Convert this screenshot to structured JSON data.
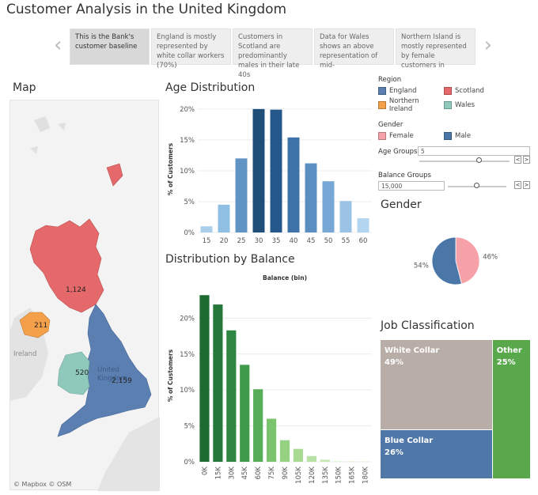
{
  "title": "Customer Analysis in the United Kingdom",
  "story": {
    "points": [
      "This is the Bank's customer baseline",
      "England is mostly represented by white collar workers (70%)",
      "Customers in Scotland are predominantly males in their late 40s",
      "Data for Wales shows an above representation of mid-",
      "Northern Island is mostly represented by female customers in"
    ],
    "active_index": 0
  },
  "map": {
    "title": "Map",
    "labels": {
      "scotland": "1,124",
      "northern_ireland": "211",
      "wales": "520",
      "england": "2,159",
      "united_kingdom": "United Kingdom",
      "ireland": "Ireland"
    },
    "credit": "© Mapbox  © OSM",
    "colors": {
      "england": "#5b7fb0",
      "scotland": "#e5696b",
      "northern_ireland": "#f4a04a",
      "wales": "#8fc9bc"
    }
  },
  "age_chart": {
    "title": "Age Distribution",
    "chart_data": {
      "type": "bar",
      "title": "Age Distribution",
      "xlabel": "",
      "ylabel": "% of Customers",
      "categories": [
        "15",
        "20",
        "25",
        "30",
        "35",
        "40",
        "45",
        "50",
        "55",
        "60"
      ],
      "values": [
        1.0,
        4.5,
        12.0,
        20.0,
        19.9,
        15.4,
        11.2,
        8.3,
        5.1,
        2.3
      ],
      "y_ticks": [
        "0%",
        "5%",
        "10%",
        "15%",
        "20%"
      ],
      "ylim": [
        0,
        20.5
      ],
      "colors": [
        "#a9cfeb",
        "#8fbfe3",
        "#5f94c4",
        "#1f4e79",
        "#24578a",
        "#3d73a8",
        "#5b8fc2",
        "#77a8d5",
        "#9ac3e6",
        "#b4d5ef"
      ]
    }
  },
  "balance_chart": {
    "title": "Distribution by Balance",
    "chart_data": {
      "type": "bar",
      "title": "Distribution by Balance",
      "xlabel": "Balance (bin)",
      "ylabel": "% of Customers",
      "categories": [
        "0K",
        "15K",
        "30K",
        "45K",
        "60K",
        "75K",
        "90K",
        "105K",
        "120K",
        "135K",
        "150K",
        "165K",
        "180K"
      ],
      "values": [
        23.2,
        21.9,
        18.3,
        13.5,
        10.1,
        6.0,
        3.0,
        1.8,
        0.8,
        0.3,
        0.05,
        0.02,
        0.02
      ],
      "y_ticks": [
        "0%",
        "5%",
        "10%",
        "15%",
        "20%"
      ],
      "ylim": [
        0,
        24
      ],
      "colors": [
        "#1e6b32",
        "#26783a",
        "#2f8641",
        "#3f9a4b",
        "#55ad57",
        "#79c46c",
        "#95d180",
        "#a8da93",
        "#b8e1a5",
        "#c6e8b6",
        "#d3eec6",
        "#dbf1d0",
        "#e2f4d8"
      ]
    }
  },
  "filters": {
    "region_label": "Region",
    "regions": [
      {
        "name": "England",
        "color": "#5b7fb0"
      },
      {
        "name": "Scotland",
        "color": "#e5696b"
      },
      {
        "name": "Northern Ireland",
        "color": "#f4a04a"
      },
      {
        "name": "Wales",
        "color": "#8fc9bc"
      }
    ],
    "gender_label": "Gender",
    "genders": [
      {
        "name": "Female",
        "color": "#f6a0a8"
      },
      {
        "name": "Male",
        "color": "#4a76a8"
      }
    ],
    "age_groups_label": "Age Groups",
    "age_groups_value": "5",
    "age_groups_level": 0.67,
    "balance_groups_label": "Balance Groups",
    "balance_groups_value": "15,000",
    "balance_groups_level": 0.5,
    "step_prev": "<",
    "step_next": ">"
  },
  "gender_chart": {
    "title": "Gender",
    "chart_data": {
      "type": "pie",
      "title": "Gender",
      "slices": [
        {
          "name": "Female",
          "value": 46,
          "label": "46%",
          "color": "#f6a0a8"
        },
        {
          "name": "Male",
          "value": 54,
          "label": "54%",
          "color": "#4a76a8"
        }
      ]
    }
  },
  "job_chart": {
    "title": "Job Classification",
    "chart_data": {
      "type": "treemap",
      "title": "Job Classification",
      "items": [
        {
          "name": "White Collar",
          "value": 49,
          "label": "49%",
          "color": "#b9aea7"
        },
        {
          "name": "Blue Collar",
          "value": 26,
          "label": "26%",
          "color": "#4f78a8"
        },
        {
          "name": "Other",
          "value": 25,
          "label": "25%",
          "color": "#59a84b"
        }
      ]
    }
  }
}
